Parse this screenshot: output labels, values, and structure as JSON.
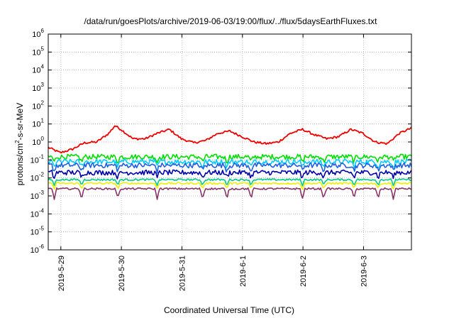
{
  "chart_data": {
    "type": "line",
    "title": "/data/run/goesPlots/archive/2019-06-03/19:00/flux/../flux/5daysEarthFluxes.txt",
    "xlabel": "Coordinated Universal Time (UTC)",
    "ylabel": "protons/cm2-s-sr-MeV",
    "ylabel_parts": {
      "pre": "protons/cm",
      "sup": "2",
      "post": "-s-sr-MeV"
    },
    "y_scale": "log",
    "ylim": [
      1e-06,
      1000000.0
    ],
    "y_tick_exponents": [
      "-6",
      "-5",
      "-4",
      "-3",
      "-2",
      "-1",
      "0",
      "1",
      "2",
      "3",
      "4",
      "5",
      "6"
    ],
    "y_tick_base": "10",
    "xlim": [
      "2019-05-28T19:00",
      "2019-06-03T19:00"
    ],
    "x_ticks": [
      "2019-5-29",
      "2019-5-30",
      "2019-5-31",
      "2019-6-1",
      "2019-6-2",
      "2019-6-3"
    ],
    "grid": true,
    "legend": "none",
    "series": [
      {
        "color": "#ee0000",
        "x_days": [
          0.0,
          0.2,
          0.4,
          0.6,
          0.8,
          1.0,
          1.1,
          1.2,
          1.4,
          1.6,
          1.8,
          2.0,
          2.2,
          2.4,
          2.6,
          2.8,
          3.0,
          3.2,
          3.4,
          3.6,
          3.8,
          4.0,
          4.2,
          4.4,
          4.6,
          4.8,
          5.0,
          5.2,
          5.4,
          5.6,
          5.8,
          6.0
        ],
        "values": [
          0.5,
          0.25,
          0.4,
          0.9,
          1.0,
          3.0,
          8.0,
          5.0,
          1.5,
          1.5,
          3.0,
          5.0,
          1.5,
          0.9,
          1.2,
          3.0,
          4.0,
          2.0,
          1.0,
          0.8,
          1.0,
          3.0,
          5.0,
          2.5,
          1.5,
          2.0,
          5.0,
          3.0,
          1.0,
          0.8,
          3.0,
          6.0
        ]
      },
      {
        "color": "#00dd00",
        "x_days": [
          0.0,
          1.0,
          2.0,
          3.0,
          4.0,
          5.0,
          6.0
        ],
        "values": [
          0.15,
          0.15,
          0.15,
          0.15,
          0.15,
          0.15,
          0.15
        ]
      },
      {
        "color": "#00ccff",
        "x_days": [
          0.0,
          1.0,
          2.0,
          3.0,
          4.0,
          5.0,
          6.0
        ],
        "values": [
          0.08,
          0.08,
          0.08,
          0.08,
          0.08,
          0.08,
          0.08
        ]
      },
      {
        "color": "#1e5fe0",
        "x_days": [
          0.0,
          1.0,
          2.0,
          3.0,
          4.0,
          5.0,
          6.0
        ],
        "values": [
          0.05,
          0.05,
          0.05,
          0.05,
          0.05,
          0.05,
          0.05
        ]
      },
      {
        "color": "#0000aa",
        "x_days": [
          0.0,
          1.0,
          2.0,
          3.0,
          4.0,
          5.0,
          6.0
        ],
        "values": [
          0.02,
          0.02,
          0.02,
          0.02,
          0.02,
          0.02,
          0.02
        ]
      },
      {
        "color": "#00cc88",
        "x_days": [
          0.0,
          1.0,
          2.0,
          3.0,
          4.0,
          5.0,
          6.0
        ],
        "values": [
          0.008,
          0.008,
          0.008,
          0.008,
          0.008,
          0.008,
          0.008
        ]
      },
      {
        "color": "#eeee00",
        "x_days": [
          0.0,
          1.0,
          2.0,
          3.0,
          4.0,
          5.0,
          6.0
        ],
        "values": [
          0.005,
          0.005,
          0.005,
          0.005,
          0.005,
          0.005,
          0.005
        ]
      },
      {
        "color": "#883366",
        "x_days": [
          0.0,
          1.0,
          2.0,
          3.0,
          4.0,
          5.0,
          6.0
        ],
        "values": [
          0.0025,
          0.0025,
          0.0025,
          0.0025,
          0.0025,
          0.0025,
          0.0025
        ]
      }
    ]
  }
}
